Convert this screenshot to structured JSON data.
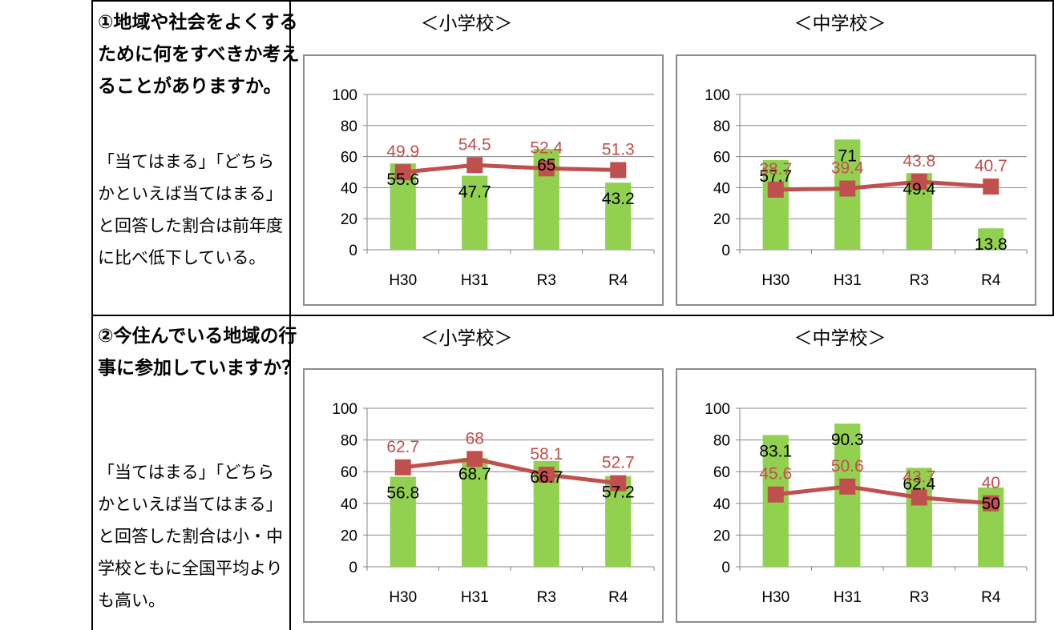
{
  "rows": [
    {
      "question_lines": [
        "①地域や社会をよくする",
        "ために何をすべきか考え",
        "ることがありますか。"
      ],
      "description_lines": [
        "「当てはまる」「どちら",
        "かといえば当てはまる」",
        "と回答した割合は前年度",
        "に比べ低下している。"
      ],
      "elementary_heading": "＜小学校＞",
      "junior_high_heading": "＜中学校＞"
    },
    {
      "question_lines": [
        "②今住んでいる地域の行",
        "事に参加していますか？"
      ],
      "description_lines": [
        "「当てはまる」「どちら",
        "かといえば当てはまる」",
        "と回答した割合は小・中",
        "学校ともに全国平均より",
        "も高い。"
      ],
      "elementary_heading": "＜小学校＞",
      "junior_high_heading": "＜中学校＞"
    }
  ],
  "chart_data": [
    {
      "type": "bar",
      "categories": [
        "H30",
        "H31",
        "R3",
        "R4"
      ],
      "ylim": [
        0,
        100
      ],
      "yticks": [
        0,
        20,
        40,
        60,
        80,
        100
      ],
      "grid": true,
      "series": [
        {
          "kind": "bar",
          "values": [
            55.6,
            47.7,
            65,
            43.2
          ],
          "color": "#92d050"
        },
        {
          "kind": "line",
          "values": [
            49.9,
            54.5,
            52.4,
            51.3
          ],
          "color": "#c0504d"
        }
      ]
    },
    {
      "type": "bar",
      "categories": [
        "H30",
        "H31",
        "R3",
        "R4"
      ],
      "ylim": [
        0,
        100
      ],
      "yticks": [
        0,
        20,
        40,
        60,
        80,
        100
      ],
      "grid": true,
      "series": [
        {
          "kind": "bar",
          "values": [
            57.7,
            71,
            49.4,
            13.8
          ],
          "color": "#92d050"
        },
        {
          "kind": "line",
          "values": [
            38.7,
            39.4,
            43.8,
            40.7
          ],
          "color": "#c0504d"
        }
      ]
    },
    {
      "type": "bar",
      "categories": [
        "H30",
        "H31",
        "R3",
        "R4"
      ],
      "ylim": [
        0,
        100
      ],
      "yticks": [
        0,
        20,
        40,
        60,
        80,
        100
      ],
      "grid": true,
      "series": [
        {
          "kind": "bar",
          "values": [
            56.8,
            68.7,
            66.7,
            57.2
          ],
          "color": "#92d050"
        },
        {
          "kind": "line",
          "values": [
            62.7,
            68,
            58.1,
            52.7
          ],
          "color": "#c0504d"
        }
      ]
    },
    {
      "type": "bar",
      "categories": [
        "H30",
        "H31",
        "R3",
        "R4"
      ],
      "ylim": [
        0,
        100
      ],
      "yticks": [
        0,
        20,
        40,
        60,
        80,
        100
      ],
      "grid": true,
      "series": [
        {
          "kind": "bar",
          "values": [
            83.1,
            90.3,
            62.4,
            50
          ],
          "color": "#92d050"
        },
        {
          "kind": "line",
          "values": [
            45.6,
            50.6,
            43.7,
            40
          ],
          "color": "#c0504d"
        }
      ]
    }
  ]
}
